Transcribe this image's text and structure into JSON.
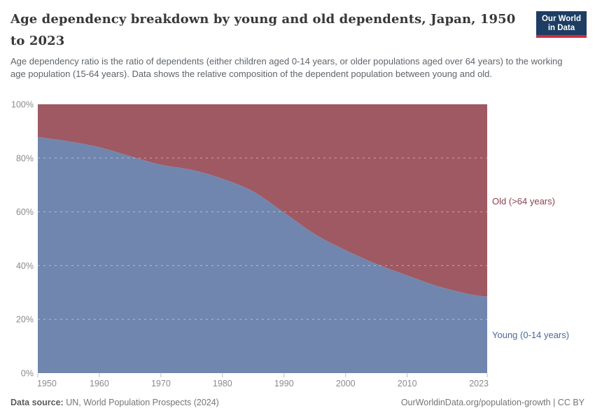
{
  "header": {
    "title": "Age dependency breakdown by young and old dependents, Japan, 1950 to 2023",
    "subtitle": "Age dependency ratio is the ratio of dependents (either children aged 0-14 years, or older populations aged over 64 years) to the working age population (15-64 years). Data shows the relative composition of the dependent population between young and old.",
    "logo": {
      "line1": "Our World",
      "line2": "in Data"
    }
  },
  "chart_data": {
    "type": "area",
    "stacked": true,
    "percent_stacked": true,
    "title": "Age dependency breakdown by young and old dependents, Japan, 1950 to 2023",
    "xlabel": "",
    "ylabel": "",
    "xlim": [
      1950,
      2023
    ],
    "ylim": [
      0,
      100
    ],
    "grid": true,
    "legend_position": "right-annotations",
    "x": [
      1950,
      1955,
      1960,
      1965,
      1970,
      1975,
      1980,
      1985,
      1990,
      1995,
      2000,
      2005,
      2010,
      2015,
      2020,
      2023
    ],
    "series": [
      {
        "name": "Young (0-14 years)",
        "color": "#7186AE",
        "label_color": "#4A6A9E",
        "values": [
          87.8,
          86.2,
          84.0,
          80.7,
          77.5,
          75.6,
          72.3,
          67.5,
          59.7,
          51.7,
          45.7,
          40.6,
          36.3,
          32.3,
          29.4,
          28.4
        ]
      },
      {
        "name": "Old (>64 years)",
        "color": "#9F5963",
        "label_color": "#8D4150",
        "values": [
          12.2,
          13.8,
          16.0,
          19.3,
          22.5,
          24.4,
          27.7,
          32.5,
          40.3,
          48.3,
          54.3,
          59.4,
          63.7,
          67.7,
          70.6,
          71.6
        ]
      }
    ],
    "x_ticks": [
      "1950",
      "1960",
      "1970",
      "1980",
      "1990",
      "2000",
      "2010",
      "2023"
    ],
    "y_ticks": [
      "0%",
      "20%",
      "40%",
      "60%",
      "80%",
      "100%"
    ],
    "axis_label_color": "#8b8b8b"
  },
  "footer": {
    "source_label": "Data source:",
    "source_text": "UN, World Population Prospects (2024)",
    "attribution": "OurWorldinData.org/population-growth | CC BY"
  }
}
